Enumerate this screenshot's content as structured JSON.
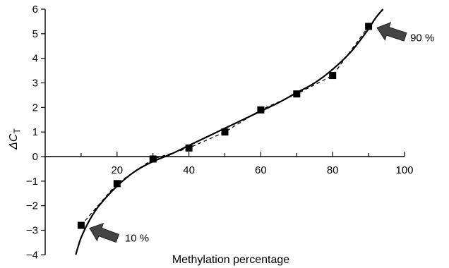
{
  "chart_data": {
    "type": "scatter",
    "xlabel": "Methylation percentage",
    "ylabel_main": "ΔC",
    "ylabel_sub": "T",
    "xlim": [
      0,
      100
    ],
    "ylim": [
      -4,
      6
    ],
    "x_ticks": [
      20,
      40,
      60,
      80,
      100
    ],
    "y_ticks": [
      -4,
      -3,
      -2,
      -1,
      0,
      1,
      2,
      3,
      4,
      5,
      6
    ],
    "grid": false,
    "series": [
      {
        "style": "markers-dashed",
        "x": [
          10,
          20,
          30,
          40,
          50,
          60,
          70,
          80,
          90
        ],
        "y": [
          -2.8,
          -1.1,
          -0.1,
          0.35,
          1.0,
          1.9,
          2.55,
          3.3,
          5.3
        ]
      },
      {
        "style": "fit-curve",
        "x": [
          8.5,
          10,
          12.5,
          15,
          20,
          25,
          30,
          35,
          40,
          45,
          50,
          55,
          60,
          65,
          70,
          75,
          80,
          85,
          88,
          90,
          92,
          94
        ],
        "y": [
          -4.0,
          -3.3,
          -2.55,
          -2.0,
          -1.2,
          -0.6,
          -0.2,
          0.1,
          0.45,
          0.8,
          1.15,
          1.5,
          1.85,
          2.2,
          2.6,
          3.0,
          3.55,
          4.25,
          4.8,
          5.2,
          5.65,
          6.0
        ]
      }
    ],
    "annotations": [
      {
        "text": "10 %",
        "x": 10,
        "y": -2.8
      },
      {
        "text": "90 %",
        "x": 90,
        "y": 5.3
      }
    ]
  }
}
